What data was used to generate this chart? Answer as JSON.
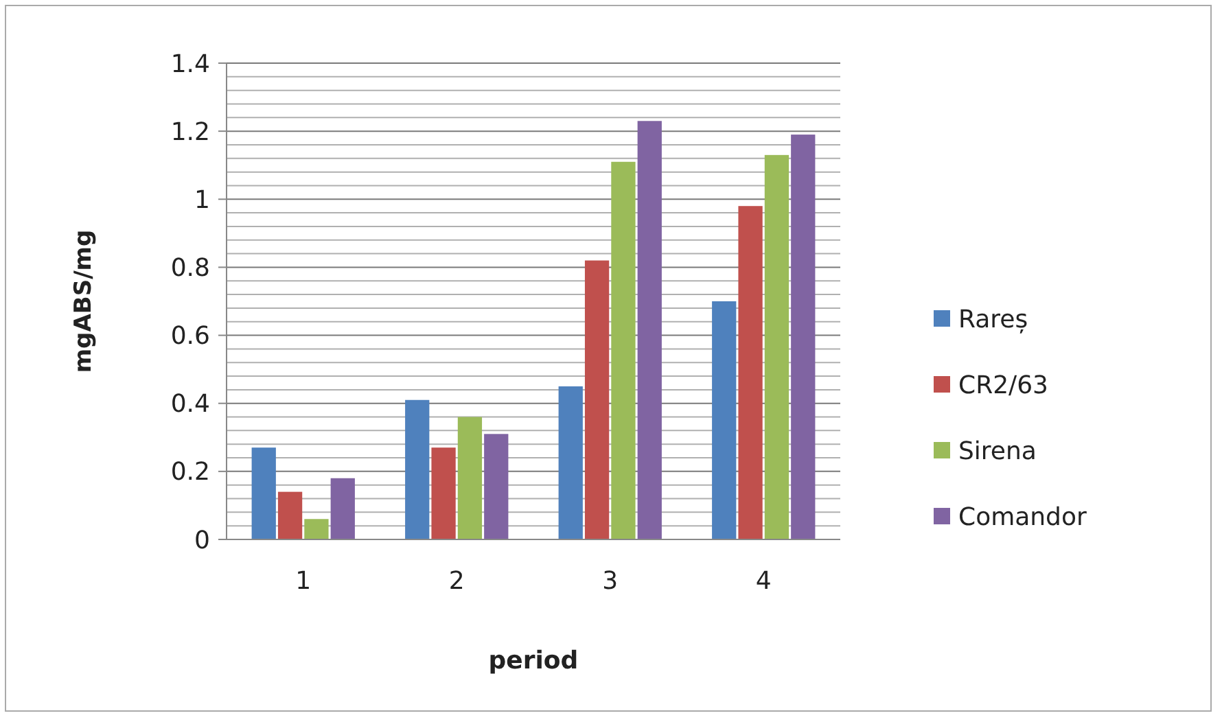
{
  "chart_data": {
    "type": "bar",
    "xlabel": "period",
    "ylabel": "mgABS/mg",
    "categories": [
      "1",
      "2",
      "3",
      "4"
    ],
    "series": [
      {
        "name": "Rareș",
        "color": "#4f81bd",
        "values": [
          0.27,
          0.41,
          0.45,
          0.7
        ]
      },
      {
        "name": "CR2/63",
        "color": "#c0504d",
        "values": [
          0.14,
          0.27,
          0.82,
          0.98
        ]
      },
      {
        "name": "Sirena",
        "color": "#9bbb59",
        "values": [
          0.06,
          0.36,
          1.11,
          1.13
        ]
      },
      {
        "name": "Comandor",
        "color": "#8064a2",
        "values": [
          0.18,
          0.31,
          1.23,
          1.19
        ]
      }
    ],
    "ylim": [
      0,
      1.4
    ],
    "yticks": [
      0,
      {
        "value": 0.04,
        "label": null
      },
      {
        "value": 0.08,
        "label": null
      },
      {
        "value": 0.12,
        "label": null
      },
      {
        "value": 0.16,
        "label": null
      },
      0.2,
      {
        "value": 0.24,
        "label": null
      },
      {
        "value": 0.28,
        "label": null
      },
      {
        "value": 0.32,
        "label": null
      },
      {
        "value": 0.36,
        "label": null
      },
      0.4,
      {
        "value": 0.44,
        "label": null
      },
      {
        "value": 0.48,
        "label": null
      },
      {
        "value": 0.52,
        "label": null
      },
      {
        "value": 0.56,
        "label": null
      },
      0.6,
      {
        "value": 0.64,
        "label": null
      },
      {
        "value": 0.68,
        "label": null
      },
      {
        "value": 0.72,
        "label": null
      },
      {
        "value": 0.76,
        "label": null
      },
      0.8,
      {
        "value": 0.84,
        "label": null
      },
      {
        "value": 0.88,
        "label": null
      },
      {
        "value": 0.92,
        "label": null
      },
      {
        "value": 0.96,
        "label": null
      },
      1,
      {
        "value": 1.04,
        "label": null
      },
      {
        "value": 1.08,
        "label": null
      },
      {
        "value": 1.12,
        "label": null
      },
      {
        "value": 1.16,
        "label": null
      },
      1.2,
      {
        "value": 1.24,
        "label": null
      },
      {
        "value": 1.28,
        "label": null
      },
      {
        "value": 1.32,
        "label": null
      },
      {
        "value": 1.36,
        "label": null
      },
      1.4
    ],
    "grid": "y",
    "legend": "right"
  }
}
